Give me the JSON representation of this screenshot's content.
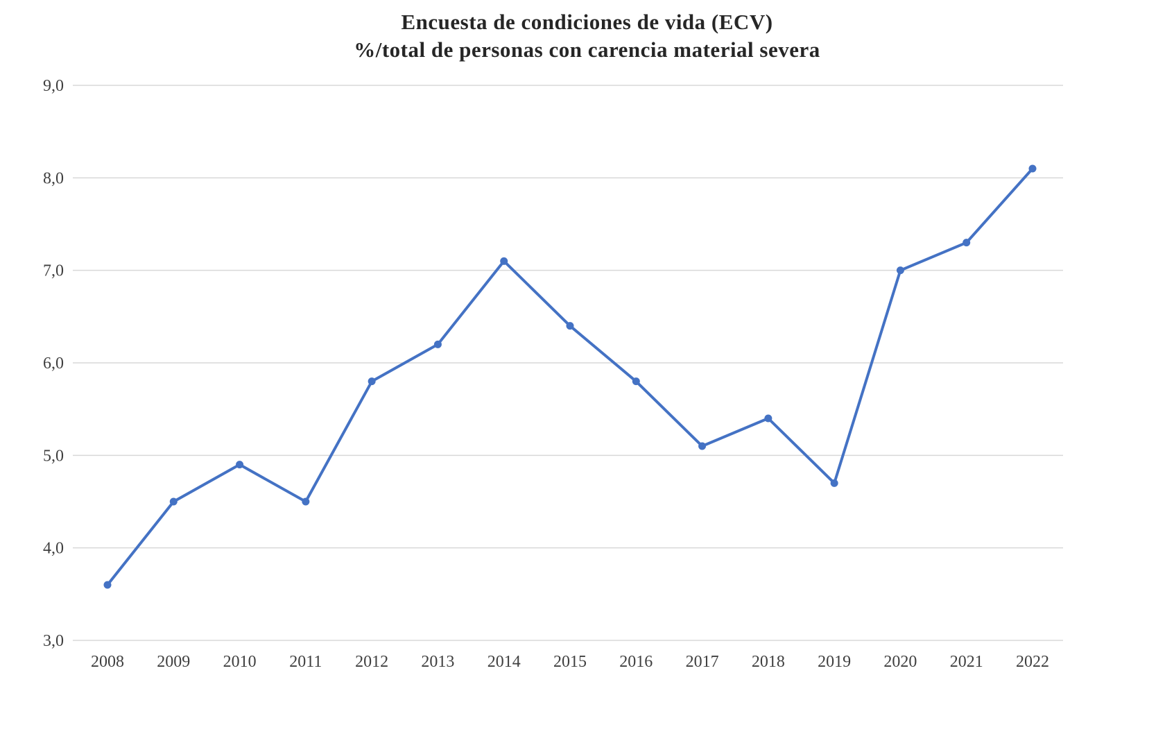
{
  "chart_data": {
    "type": "line",
    "title": "Encuesta de condiciones de vida (ECV)",
    "subtitle": "%/total de personas con carencia material severa",
    "categories": [
      "2008",
      "2009",
      "2010",
      "2011",
      "2012",
      "2013",
      "2014",
      "2015",
      "2016",
      "2017",
      "2018",
      "2019",
      "2020",
      "2021",
      "2022"
    ],
    "values": [
      3.6,
      4.5,
      4.9,
      4.5,
      5.8,
      6.2,
      7.1,
      6.4,
      5.8,
      5.1,
      5.4,
      4.7,
      7.0,
      7.3,
      8.1
    ],
    "xlabel": "",
    "ylabel": "",
    "ylim": [
      3.0,
      9.0
    ],
    "ytick_values": [
      3,
      4,
      5,
      6,
      7,
      8,
      9
    ],
    "ytick_labels": [
      "3,0",
      "4,0",
      "5,0",
      "6,0",
      "7,0",
      "8,0",
      "9,0"
    ],
    "grid": true,
    "legend_position": "none",
    "marker": "circle",
    "colors": {
      "line": "#4472C4",
      "marker": "#4472C4",
      "grid": "#D8D8D8",
      "text": "#3F3F3F",
      "title": "#262626",
      "background": "#FFFFFF"
    }
  }
}
